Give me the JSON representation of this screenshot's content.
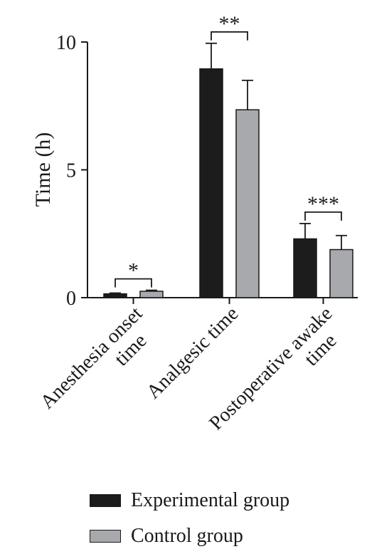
{
  "chart_data": {
    "type": "bar",
    "title": "",
    "xlabel": "",
    "ylabel": "Time (h)",
    "ylim": [
      0,
      10
    ],
    "yticks": [
      "0",
      "5",
      "10"
    ],
    "categories": [
      [
        "Anesthesia onset",
        "time"
      ],
      [
        "Analgesic time"
      ],
      [
        "Postoperative awake",
        "time"
      ]
    ],
    "series": [
      {
        "name": "Experimental group",
        "color": "#1c1c1c",
        "values": [
          0.15,
          8.95,
          2.3
        ],
        "errors": [
          0.03,
          1.0,
          0.6
        ]
      },
      {
        "name": "Control group",
        "color": "#a7a9ac",
        "values": [
          0.25,
          7.35,
          1.88
        ],
        "errors": [
          0.04,
          1.15,
          0.55
        ]
      }
    ],
    "significance": [
      "*",
      "**",
      "***"
    ],
    "legend_position": "bottom"
  }
}
